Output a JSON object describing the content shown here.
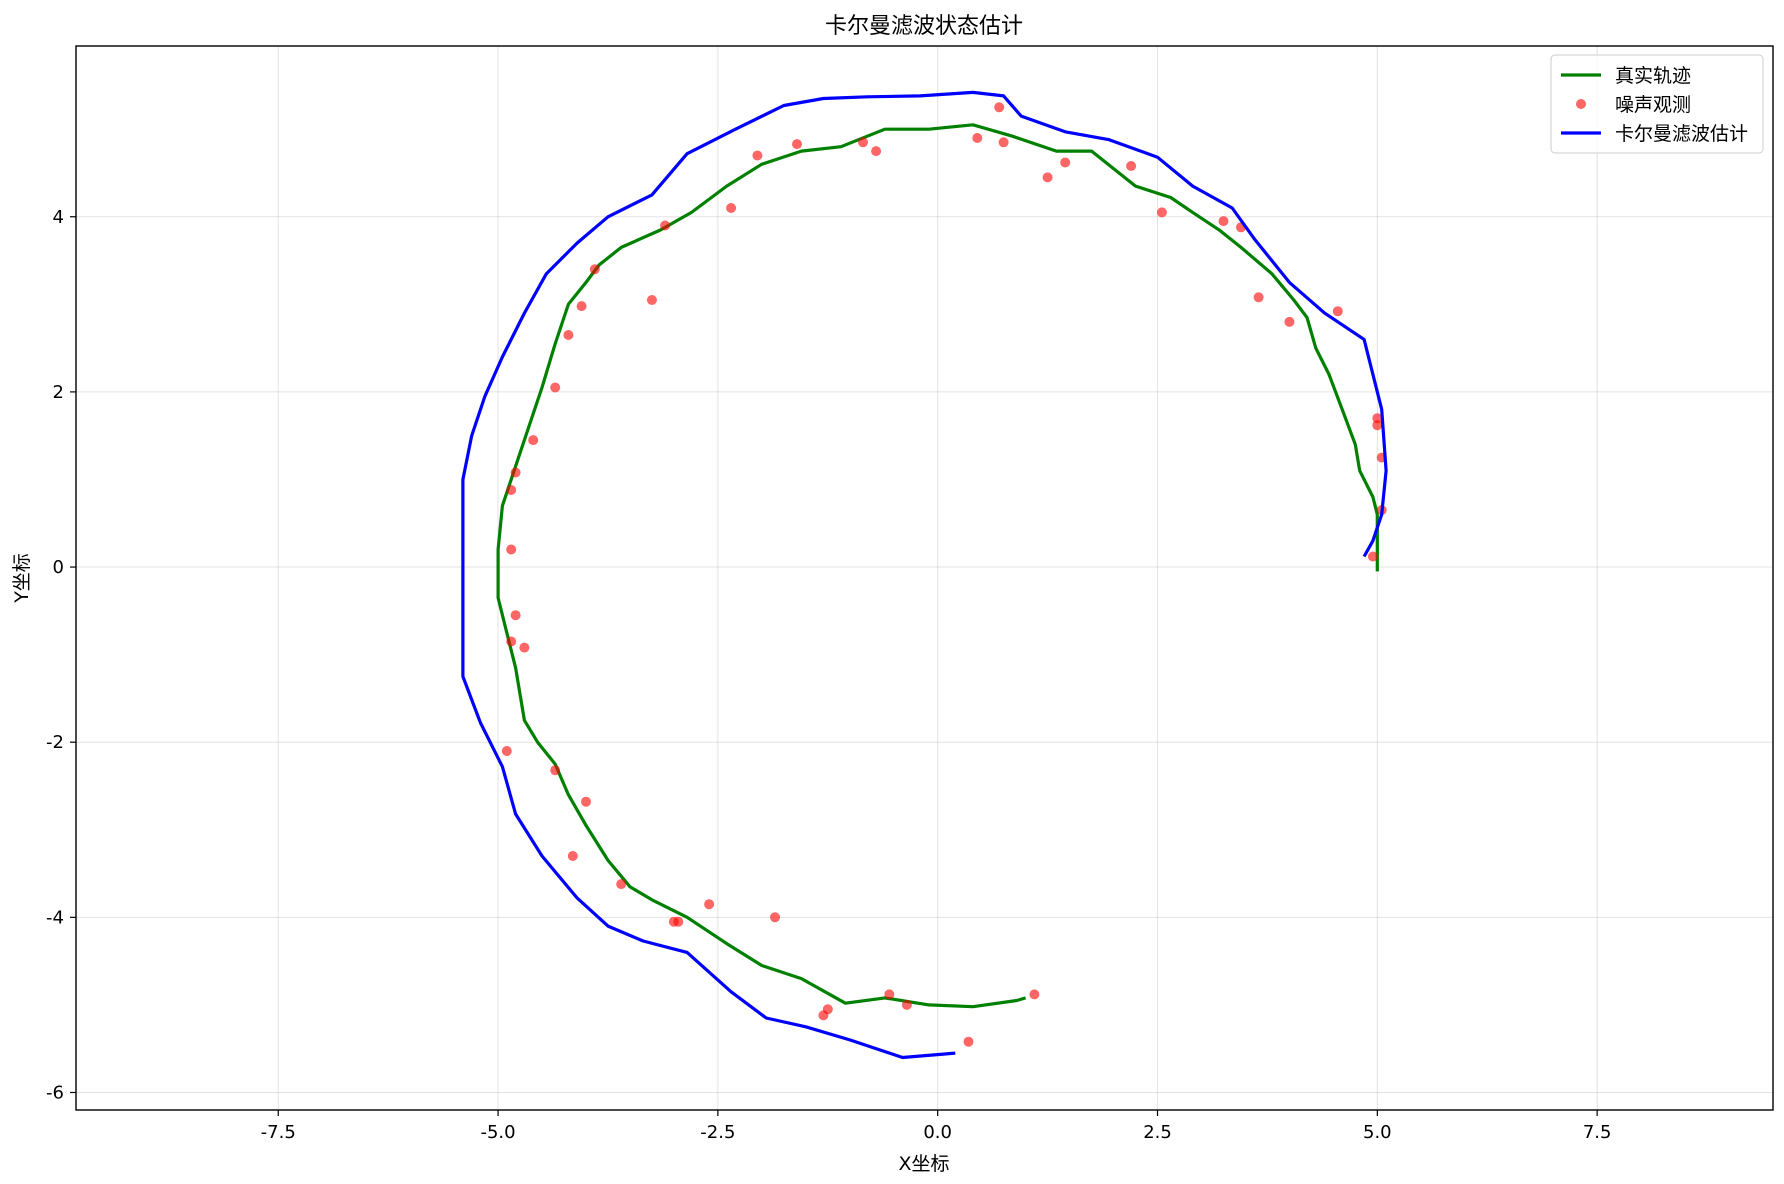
{
  "chart_data": {
    "type": "line",
    "title": "卡尔曼滤波状态估计",
    "xlabel": "X坐标",
    "ylabel": "Y坐标",
    "xlim": [
      -9.8,
      9.5
    ],
    "ylim": [
      -6.2,
      5.95
    ],
    "x_ticks": [
      -7.5,
      -5.0,
      -2.5,
      0.0,
      2.5,
      5.0,
      7.5
    ],
    "x_tick_labels": [
      "-7.5",
      "-5.0",
      "-2.5",
      "0.0",
      "2.5",
      "5.0",
      "7.5"
    ],
    "y_ticks": [
      -6,
      -4,
      -2,
      0,
      2,
      4
    ],
    "y_tick_labels": [
      "-6",
      "-4",
      "-2",
      "0",
      "2",
      "4"
    ],
    "grid": true,
    "legend_position": "top-right",
    "colors": {
      "true_path": "#008000",
      "observations": "#ff0000",
      "kalman": "#0000ff"
    },
    "series": [
      {
        "name": "真实轨迹",
        "kind": "line",
        "points": [
          [
            5.0,
            -0.05
          ],
          [
            5.0,
            0.3
          ],
          [
            5.0,
            0.6
          ],
          [
            4.95,
            0.8
          ],
          [
            4.8,
            1.1
          ],
          [
            4.75,
            1.4
          ],
          [
            4.6,
            1.8
          ],
          [
            4.45,
            2.2
          ],
          [
            4.3,
            2.5
          ],
          [
            4.2,
            2.85
          ],
          [
            4.05,
            3.05
          ],
          [
            3.8,
            3.35
          ],
          [
            3.45,
            3.65
          ],
          [
            3.2,
            3.85
          ],
          [
            2.9,
            4.05
          ],
          [
            2.65,
            4.22
          ],
          [
            2.25,
            4.35
          ],
          [
            1.75,
            4.75
          ],
          [
            1.35,
            4.75
          ],
          [
            0.85,
            4.92
          ],
          [
            0.4,
            5.05
          ],
          [
            -0.1,
            5.0
          ],
          [
            -0.6,
            5.0
          ],
          [
            -1.1,
            4.8
          ],
          [
            -1.55,
            4.75
          ],
          [
            -2.0,
            4.6
          ],
          [
            -2.4,
            4.35
          ],
          [
            -2.8,
            4.05
          ],
          [
            -3.15,
            3.85
          ],
          [
            -3.6,
            3.65
          ],
          [
            -3.85,
            3.45
          ],
          [
            -4.0,
            3.25
          ],
          [
            -4.2,
            3.0
          ],
          [
            -4.35,
            2.55
          ],
          [
            -4.5,
            2.05
          ],
          [
            -4.65,
            1.6
          ],
          [
            -4.8,
            1.15
          ],
          [
            -4.95,
            0.7
          ],
          [
            -5.0,
            0.2
          ],
          [
            -5.0,
            -0.35
          ],
          [
            -4.9,
            -0.75
          ],
          [
            -4.8,
            -1.15
          ],
          [
            -4.7,
            -1.75
          ],
          [
            -4.55,
            -2.0
          ],
          [
            -4.35,
            -2.25
          ],
          [
            -4.2,
            -2.6
          ],
          [
            -4.0,
            -2.95
          ],
          [
            -3.75,
            -3.35
          ],
          [
            -3.5,
            -3.65
          ],
          [
            -3.25,
            -3.8
          ],
          [
            -2.85,
            -4.0
          ],
          [
            -2.4,
            -4.3
          ],
          [
            -2.0,
            -4.55
          ],
          [
            -1.55,
            -4.7
          ],
          [
            -1.05,
            -4.98
          ],
          [
            -0.6,
            -4.92
          ],
          [
            -0.1,
            -5.0
          ],
          [
            0.4,
            -5.02
          ],
          [
            0.9,
            -4.95
          ],
          [
            1.0,
            -4.92
          ]
        ]
      },
      {
        "name": "噪声观测",
        "kind": "scatter",
        "points": [
          [
            5.05,
            0.65
          ],
          [
            4.95,
            0.12
          ],
          [
            5.05,
            1.25
          ],
          [
            5.0,
            1.7
          ],
          [
            5.0,
            1.62
          ],
          [
            4.55,
            2.92
          ],
          [
            4.0,
            2.8
          ],
          [
            3.65,
            3.08
          ],
          [
            3.45,
            3.88
          ],
          [
            3.25,
            3.95
          ],
          [
            2.55,
            4.05
          ],
          [
            2.2,
            4.58
          ],
          [
            1.45,
            4.62
          ],
          [
            1.25,
            4.45
          ],
          [
            0.75,
            4.85
          ],
          [
            0.45,
            4.9
          ],
          [
            0.7,
            5.25
          ],
          [
            -0.7,
            4.75
          ],
          [
            -0.85,
            4.85
          ],
          [
            -1.6,
            4.83
          ],
          [
            -2.05,
            4.7
          ],
          [
            -2.35,
            4.1
          ],
          [
            -3.1,
            3.9
          ],
          [
            -3.25,
            3.05
          ],
          [
            -3.9,
            3.4
          ],
          [
            -4.05,
            2.98
          ],
          [
            -4.2,
            2.65
          ],
          [
            -4.35,
            2.05
          ],
          [
            -4.6,
            1.45
          ],
          [
            -4.8,
            1.08
          ],
          [
            -4.85,
            0.88
          ],
          [
            -4.85,
            0.2
          ],
          [
            -4.8,
            -0.55
          ],
          [
            -4.85,
            -0.85
          ],
          [
            -4.7,
            -0.92
          ],
          [
            -4.9,
            -2.1
          ],
          [
            -4.35,
            -2.32
          ],
          [
            -4.0,
            -2.68
          ],
          [
            -4.15,
            -3.3
          ],
          [
            -3.6,
            -3.62
          ],
          [
            -2.95,
            -4.05
          ],
          [
            -3.0,
            -4.05
          ],
          [
            -2.6,
            -3.85
          ],
          [
            -1.85,
            -4.0
          ],
          [
            -1.3,
            -5.12
          ],
          [
            -1.25,
            -5.05
          ],
          [
            -0.55,
            -4.88
          ],
          [
            -0.35,
            -5.0
          ],
          [
            0.35,
            -5.42
          ],
          [
            1.1,
            -4.88
          ]
        ]
      },
      {
        "name": "卡尔曼滤波估计",
        "kind": "line",
        "points": [
          [
            4.85,
            0.12
          ],
          [
            4.95,
            0.3
          ],
          [
            5.05,
            0.6
          ],
          [
            5.1,
            1.1
          ],
          [
            5.05,
            1.8
          ],
          [
            4.85,
            2.6
          ],
          [
            4.4,
            2.9
          ],
          [
            4.0,
            3.25
          ],
          [
            3.6,
            3.75
          ],
          [
            3.35,
            4.1
          ],
          [
            2.9,
            4.35
          ],
          [
            2.5,
            4.68
          ],
          [
            1.95,
            4.88
          ],
          [
            1.45,
            4.97
          ],
          [
            0.95,
            5.15
          ],
          [
            0.75,
            5.38
          ],
          [
            0.4,
            5.42
          ],
          [
            -0.2,
            5.38
          ],
          [
            -0.8,
            5.37
          ],
          [
            -1.3,
            5.35
          ],
          [
            -1.75,
            5.27
          ],
          [
            -2.3,
            5.0
          ],
          [
            -2.85,
            4.72
          ],
          [
            -3.25,
            4.25
          ],
          [
            -3.75,
            4.0
          ],
          [
            -4.1,
            3.7
          ],
          [
            -4.45,
            3.35
          ],
          [
            -4.7,
            2.9
          ],
          [
            -4.95,
            2.4
          ],
          [
            -5.15,
            1.95
          ],
          [
            -5.3,
            1.5
          ],
          [
            -5.4,
            1.0
          ],
          [
            -5.4,
            0.35
          ],
          [
            -5.4,
            -0.15
          ],
          [
            -5.4,
            -0.6
          ],
          [
            -5.4,
            -1.25
          ],
          [
            -5.2,
            -1.78
          ],
          [
            -4.95,
            -2.28
          ],
          [
            -4.8,
            -2.82
          ],
          [
            -4.5,
            -3.3
          ],
          [
            -4.1,
            -3.78
          ],
          [
            -3.75,
            -4.1
          ],
          [
            -3.35,
            -4.27
          ],
          [
            -2.85,
            -4.4
          ],
          [
            -2.35,
            -4.85
          ],
          [
            -1.95,
            -5.15
          ],
          [
            -1.5,
            -5.25
          ],
          [
            -1.0,
            -5.4
          ],
          [
            -0.4,
            -5.6
          ],
          [
            0.2,
            -5.55
          ]
        ]
      }
    ]
  }
}
